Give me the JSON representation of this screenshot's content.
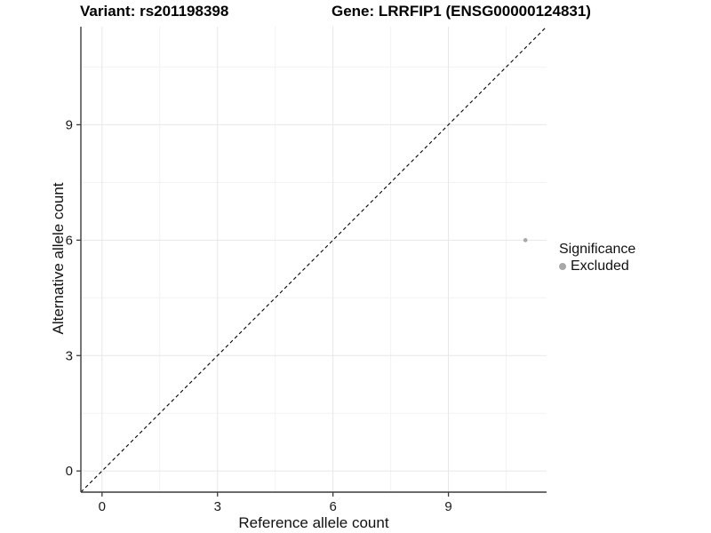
{
  "chart_data": {
    "type": "scatter",
    "titles": {
      "left": "Variant: rs201198398",
      "right": "Gene: LRRFIP1 (ENSG00000124831)"
    },
    "xlabel": "Reference allele count",
    "ylabel": "Alternative allele count",
    "xlim": [
      -0.55,
      11.55
    ],
    "ylim": [
      -0.55,
      11.55
    ],
    "x_ticks": [
      0,
      3,
      6,
      9
    ],
    "y_ticks": [
      0,
      3,
      6,
      9
    ],
    "x_minor_ticks": [
      1.5,
      4.5,
      7.5,
      10.5
    ],
    "y_minor_ticks": [
      1.5,
      4.5,
      7.5,
      10.5
    ],
    "grid": "major+minor",
    "identity_line": {
      "type": "abline",
      "slope": 1,
      "intercept": 0,
      "style": "dashed",
      "color": "#000000"
    },
    "series": [
      {
        "name": "Excluded",
        "color": "#a8a8a8",
        "point_radius": 2.3,
        "points": [
          {
            "x": 11,
            "y": 6
          }
        ]
      }
    ],
    "legend": {
      "title": "Significance",
      "position": "right",
      "entries": [
        {
          "label": "Excluded",
          "color": "#a8a8a8"
        }
      ]
    }
  },
  "colors": {
    "background": "#ffffff",
    "grid_major": "#e7e7e7",
    "grid_minor": "#f3f3f3",
    "axis_line": "#3c3c3c",
    "tick_mark": "#3c3c3c",
    "tick_label": "#1a1a1a"
  }
}
